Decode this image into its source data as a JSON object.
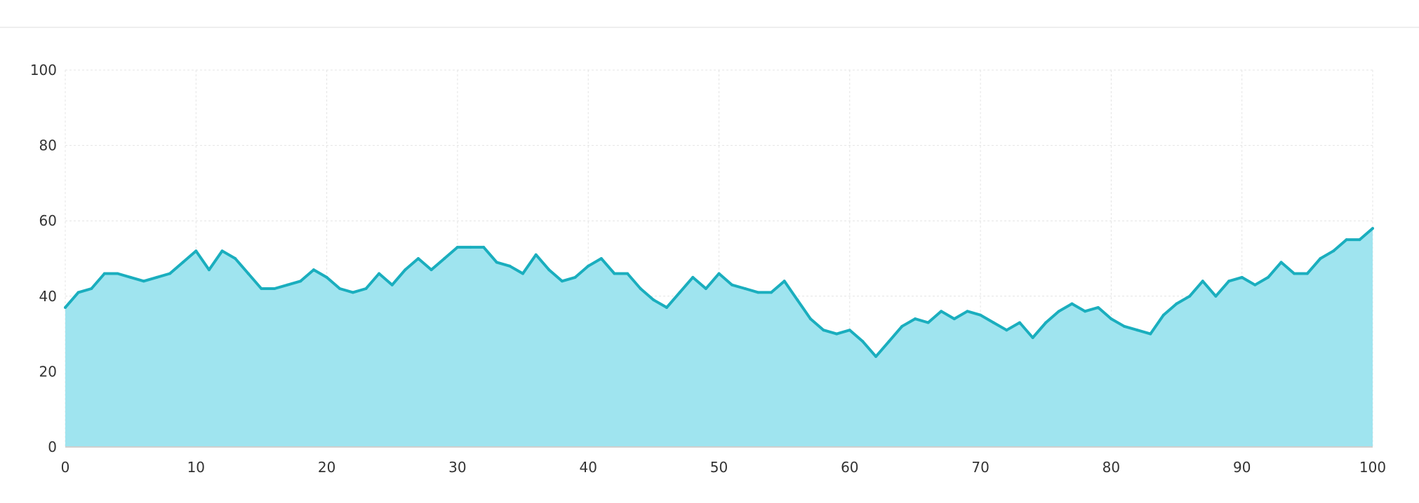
{
  "colors": {
    "line": "#1aaebe",
    "area": "#9fe4ef",
    "grid": "#e4e4e4",
    "axis": "#cfcfcf"
  },
  "chart_data": {
    "type": "area",
    "title": "",
    "xlabel": "",
    "ylabel": "",
    "xlim": [
      0,
      100
    ],
    "ylim": [
      0,
      100
    ],
    "grid": true,
    "x_ticks": [
      "0",
      "10",
      "20",
      "30",
      "40",
      "50",
      "60",
      "70",
      "80",
      "90",
      "100"
    ],
    "y_ticks": [
      "0",
      "20",
      "40",
      "60",
      "80",
      "100"
    ],
    "x": [
      0,
      1,
      2,
      3,
      4,
      5,
      6,
      7,
      8,
      9,
      10,
      11,
      12,
      13,
      14,
      15,
      16,
      17,
      18,
      19,
      20,
      21,
      22,
      23,
      24,
      25,
      26,
      27,
      28,
      29,
      30,
      31,
      32,
      33,
      34,
      35,
      36,
      37,
      38,
      39,
      40,
      41,
      42,
      43,
      44,
      45,
      46,
      47,
      48,
      49,
      50,
      51,
      52,
      53,
      54,
      55,
      56,
      57,
      58,
      59,
      60,
      61,
      62,
      63,
      64,
      65,
      66,
      67,
      68,
      69,
      70,
      71,
      72,
      73,
      74,
      75,
      76,
      77,
      78,
      79,
      80,
      81,
      82,
      83,
      84,
      85,
      86,
      87,
      88,
      89,
      90,
      91,
      92,
      93,
      94,
      95,
      96,
      97,
      98,
      99,
      100
    ],
    "series": [
      {
        "values": [
          37,
          41,
          42,
          46,
          46,
          45,
          44,
          45,
          46,
          49,
          52,
          47,
          52,
          50,
          46,
          42,
          42,
          43,
          44,
          47,
          45,
          42,
          41,
          42,
          46,
          43,
          47,
          50,
          47,
          50,
          53,
          53,
          53,
          49,
          48,
          46,
          51,
          47,
          44,
          45,
          48,
          50,
          46,
          46,
          42,
          39,
          37,
          41,
          45,
          42,
          46,
          43,
          42,
          41,
          41,
          44,
          39,
          34,
          31,
          30,
          31,
          28,
          24,
          28,
          32,
          34,
          33,
          36,
          34,
          36,
          35,
          33,
          31,
          33,
          29,
          33,
          36,
          38,
          36,
          37,
          34,
          32,
          31,
          30,
          35,
          38,
          40,
          44,
          40,
          44,
          45,
          43,
          45,
          49,
          46,
          46,
          50,
          52,
          55,
          55,
          58
        ]
      }
    ]
  }
}
